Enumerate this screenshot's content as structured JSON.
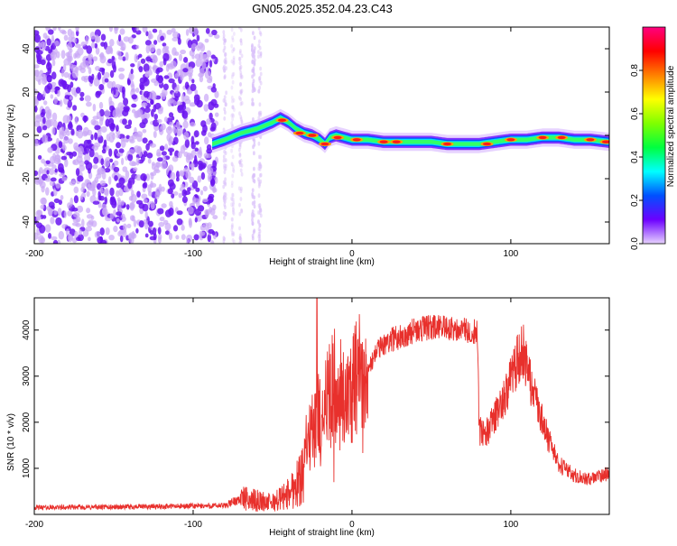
{
  "title": "GN05.2025.352.04.23.C43",
  "chart_data": [
    {
      "type": "heatmap",
      "name": "spectrogram",
      "xlabel": "Height of straight line (km)",
      "ylabel": "Frequency (Hz)",
      "xlim": [
        -200,
        162
      ],
      "ylim": [
        -50,
        50
      ],
      "xticks": [
        -200,
        -100,
        0,
        100
      ],
      "yticks": [
        -40,
        -20,
        0,
        20,
        40
      ],
      "colorbar": {
        "label": "Normalized spectral amplitude",
        "range": [
          0,
          1
        ],
        "ticks": [
          0.0,
          0.2,
          0.4,
          0.6,
          0.8
        ],
        "colors": [
          "#e7d3ff",
          "#6c00ff",
          "#0050ff",
          "#00ffff",
          "#00ff40",
          "#80ff00",
          "#ffff00",
          "#ff8000",
          "#ff0000",
          "#ff0080"
        ]
      },
      "noise_region_x": [
        -200,
        -85
      ],
      "ridge": [
        [
          -88,
          -4
        ],
        [
          -80,
          -2
        ],
        [
          -70,
          1
        ],
        [
          -60,
          3
        ],
        [
          -50,
          6
        ],
        [
          -45,
          8
        ],
        [
          -40,
          6
        ],
        [
          -35,
          3
        ],
        [
          -30,
          1
        ],
        [
          -25,
          0
        ],
        [
          -20,
          -2
        ],
        [
          -17,
          -4
        ],
        [
          -14,
          -1
        ],
        [
          -10,
          0
        ],
        [
          -5,
          -1
        ],
        [
          0,
          -2
        ],
        [
          10,
          -2
        ],
        [
          20,
          -3
        ],
        [
          30,
          -3
        ],
        [
          40,
          -3
        ],
        [
          50,
          -3
        ],
        [
          60,
          -4
        ],
        [
          70,
          -4
        ],
        [
          80,
          -4
        ],
        [
          90,
          -3
        ],
        [
          100,
          -2
        ],
        [
          110,
          -2
        ],
        [
          120,
          -1
        ],
        [
          130,
          -1
        ],
        [
          140,
          -2
        ],
        [
          150,
          -2
        ],
        [
          162,
          -3
        ]
      ],
      "peaks": [
        [
          -44,
          7
        ],
        [
          -33,
          1
        ],
        [
          -25,
          0
        ],
        [
          -17,
          -4
        ],
        [
          -9,
          -1
        ],
        [
          3,
          -2
        ],
        [
          20,
          -3
        ],
        [
          28,
          -3
        ],
        [
          60,
          -4
        ],
        [
          85,
          -4
        ],
        [
          100,
          -2
        ],
        [
          120,
          -1
        ],
        [
          132,
          -1
        ],
        [
          150,
          -2
        ],
        [
          160,
          -3
        ]
      ]
    },
    {
      "type": "line",
      "name": "snr",
      "xlabel": "Height of straight line (km)",
      "ylabel": "SNR (10 * v/v)",
      "xlim": [
        -200,
        162
      ],
      "ylim": [
        0,
        4700
      ],
      "xticks": [
        -200,
        -100,
        0,
        100
      ],
      "yticks": [
        1000,
        2000,
        3000,
        4000
      ],
      "color": "#e8302c",
      "envelope": [
        [
          -200,
          150
        ],
        [
          -150,
          160
        ],
        [
          -100,
          180
        ],
        [
          -80,
          190
        ],
        [
          -70,
          350
        ],
        [
          -60,
          300
        ],
        [
          -50,
          250
        ],
        [
          -40,
          450
        ],
        [
          -32,
          800
        ],
        [
          -30,
          1400
        ],
        [
          -25,
          1800
        ],
        [
          -22,
          2300
        ],
        [
          -20,
          2000
        ],
        [
          -15,
          2700
        ],
        [
          -10,
          2800
        ],
        [
          -5,
          2600
        ],
        [
          0,
          2700
        ],
        [
          5,
          3100
        ],
        [
          10,
          3100
        ],
        [
          15,
          3500
        ],
        [
          20,
          3700
        ],
        [
          25,
          3800
        ],
        [
          30,
          3850
        ],
        [
          40,
          4000
        ],
        [
          50,
          4050
        ],
        [
          60,
          4050
        ],
        [
          70,
          4000
        ],
        [
          79,
          3950
        ],
        [
          80,
          1800
        ],
        [
          85,
          1800
        ],
        [
          90,
          2100
        ],
        [
          95,
          2500
        ],
        [
          100,
          2900
        ],
        [
          105,
          3450
        ],
        [
          108,
          3500
        ],
        [
          112,
          2900
        ],
        [
          118,
          2200
        ],
        [
          125,
          1500
        ],
        [
          130,
          1100
        ],
        [
          140,
          850
        ],
        [
          150,
          750
        ],
        [
          162,
          900
        ]
      ]
    }
  ]
}
